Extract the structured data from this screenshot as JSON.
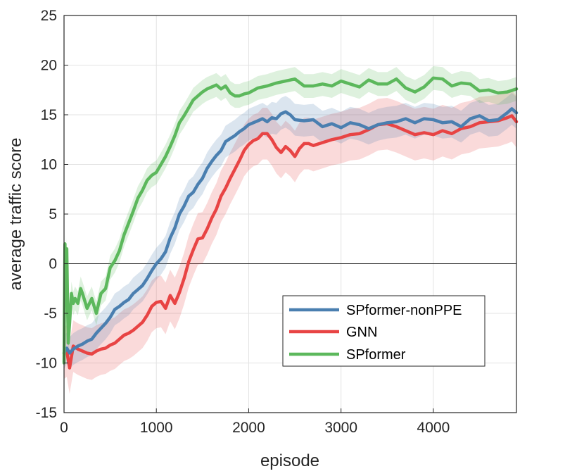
{
  "chart_data": {
    "type": "line",
    "xlabel": "episode",
    "ylabel": "average traffic score",
    "xlim": [
      0,
      4900
    ],
    "ylim": [
      -15,
      25
    ],
    "xticks": [
      0,
      1000,
      2000,
      3000,
      4000
    ],
    "yticks": [
      -15,
      -10,
      -5,
      0,
      5,
      10,
      15,
      20,
      25
    ],
    "grid": true,
    "zero_line": true,
    "legend_position": "lower-right",
    "series": [
      {
        "name": "SPformer-nonPPE",
        "color": "#4a7fb0",
        "band": 1.6,
        "x": [
          0,
          30,
          60,
          100,
          150,
          200,
          250,
          300,
          350,
          400,
          450,
          500,
          550,
          600,
          650,
          700,
          750,
          800,
          850,
          900,
          950,
          1000,
          1050,
          1100,
          1150,
          1200,
          1250,
          1300,
          1350,
          1400,
          1450,
          1500,
          1550,
          1600,
          1650,
          1700,
          1750,
          1800,
          1850,
          1900,
          1950,
          2000,
          2050,
          2100,
          2150,
          2200,
          2250,
          2300,
          2350,
          2400,
          2450,
          2500,
          2600,
          2700,
          2800,
          2900,
          3000,
          3100,
          3200,
          3300,
          3400,
          3500,
          3600,
          3700,
          3800,
          3900,
          4000,
          4100,
          4200,
          4300,
          4400,
          4500,
          4600,
          4700,
          4800,
          4850,
          4900
        ],
        "y": [
          -9,
          -8.5,
          -9,
          -8.6,
          -8.3,
          -8.1,
          -7.8,
          -7.6,
          -7,
          -6.5,
          -6,
          -5.4,
          -4.6,
          -4.3,
          -3.9,
          -3.6,
          -3,
          -2.6,
          -2.2,
          -1.5,
          -0.7,
          0,
          0.5,
          1.2,
          2.6,
          3.6,
          5,
          5.8,
          6.8,
          7.2,
          8,
          8.6,
          9.6,
          10.3,
          10.9,
          11.4,
          12.3,
          12.6,
          12.9,
          13.3,
          13.6,
          14,
          14.2,
          14.4,
          14.6,
          14.3,
          14.7,
          14.6,
          15.1,
          15.3,
          15,
          14.5,
          14.4,
          14.5,
          13.8,
          14.1,
          13.7,
          14.2,
          14,
          13.6,
          14,
          14.2,
          14.3,
          14.6,
          14.2,
          14.6,
          14.5,
          14.2,
          14.3,
          13.8,
          14.6,
          14.9,
          14.4,
          14.5,
          15.2,
          15.6,
          15.2
        ]
      },
      {
        "name": "GNN",
        "color": "#e84444",
        "band": 2.6,
        "x": [
          0,
          30,
          60,
          100,
          150,
          200,
          250,
          300,
          350,
          400,
          450,
          500,
          550,
          600,
          650,
          700,
          750,
          800,
          850,
          900,
          950,
          1000,
          1050,
          1100,
          1150,
          1200,
          1250,
          1300,
          1350,
          1400,
          1450,
          1500,
          1550,
          1600,
          1650,
          1700,
          1750,
          1800,
          1850,
          1900,
          1950,
          2000,
          2050,
          2100,
          2150,
          2200,
          2250,
          2300,
          2350,
          2400,
          2450,
          2500,
          2550,
          2600,
          2650,
          2700,
          2800,
          2900,
          3000,
          3100,
          3200,
          3300,
          3400,
          3500,
          3600,
          3700,
          3800,
          3900,
          4000,
          4100,
          4200,
          4300,
          4400,
          4500,
          4600,
          4700,
          4800,
          4850,
          4900
        ],
        "y": [
          -9,
          -8.8,
          -10.5,
          -8.3,
          -8.6,
          -8.8,
          -9,
          -9.1,
          -8.8,
          -8.6,
          -8.5,
          -8.2,
          -8,
          -7.6,
          -7.2,
          -7,
          -6.7,
          -6.3,
          -5.9,
          -5.2,
          -4.3,
          -3.9,
          -3.8,
          -4.5,
          -3.2,
          -4,
          -2.9,
          -1.5,
          0.2,
          1.4,
          2.5,
          2.6,
          3.5,
          4.6,
          5.5,
          6.8,
          7.6,
          8.6,
          9.5,
          10.4,
          11.4,
          12,
          12.4,
          12.6,
          13.1,
          13.1,
          12.5,
          11.7,
          11.2,
          11.8,
          11.4,
          10.8,
          11.6,
          12.1,
          12.1,
          11.9,
          12.2,
          12.5,
          12.7,
          13,
          13.1,
          13.5,
          14,
          14.1,
          13.8,
          13.4,
          13,
          13.2,
          13,
          13.4,
          13.1,
          13.6,
          13.8,
          14.2,
          14.3,
          14.4,
          14.7,
          14.9,
          14.3
        ]
      },
      {
        "name": "SPformer",
        "color": "#5cb85c",
        "band": 1.2,
        "x": [
          0,
          10,
          20,
          30,
          45,
          60,
          80,
          100,
          120,
          150,
          180,
          200,
          250,
          300,
          350,
          400,
          450,
          500,
          550,
          600,
          650,
          700,
          750,
          800,
          850,
          900,
          950,
          1000,
          1050,
          1100,
          1150,
          1200,
          1250,
          1300,
          1350,
          1400,
          1450,
          1500,
          1550,
          1600,
          1650,
          1700,
          1750,
          1800,
          1850,
          1900,
          1950,
          2000,
          2100,
          2200,
          2300,
          2400,
          2500,
          2600,
          2700,
          2800,
          2900,
          3000,
          3100,
          3200,
          3300,
          3400,
          3500,
          3600,
          3700,
          3800,
          3900,
          4000,
          4100,
          4200,
          4300,
          4400,
          4500,
          4600,
          4700,
          4800,
          4900
        ],
        "y": [
          -10,
          2,
          -4,
          1.5,
          -8,
          -6,
          -3,
          -4,
          -3.5,
          -4,
          -2.5,
          -3,
          -4.5,
          -3.5,
          -5,
          -3,
          -2.5,
          -0.4,
          0.3,
          1.3,
          2.9,
          4.1,
          5.3,
          6.6,
          7.4,
          8.4,
          8.9,
          9.2,
          10,
          10.8,
          11.8,
          12.9,
          14.2,
          14.9,
          15.7,
          16.5,
          16.9,
          17.3,
          17.6,
          17.8,
          18,
          17.6,
          17.9,
          17.2,
          16.9,
          16.9,
          17.1,
          17.2,
          17.7,
          17.9,
          18.2,
          18.4,
          18.6,
          17.9,
          17.9,
          18.1,
          17.9,
          18.4,
          18.1,
          17.8,
          18.5,
          18.1,
          18.1,
          18.6,
          17.7,
          17.3,
          17.8,
          18.7,
          18.6,
          17.9,
          18.2,
          18.1,
          17.4,
          17.5,
          17.2,
          17.3,
          17.6
        ]
      }
    ]
  }
}
